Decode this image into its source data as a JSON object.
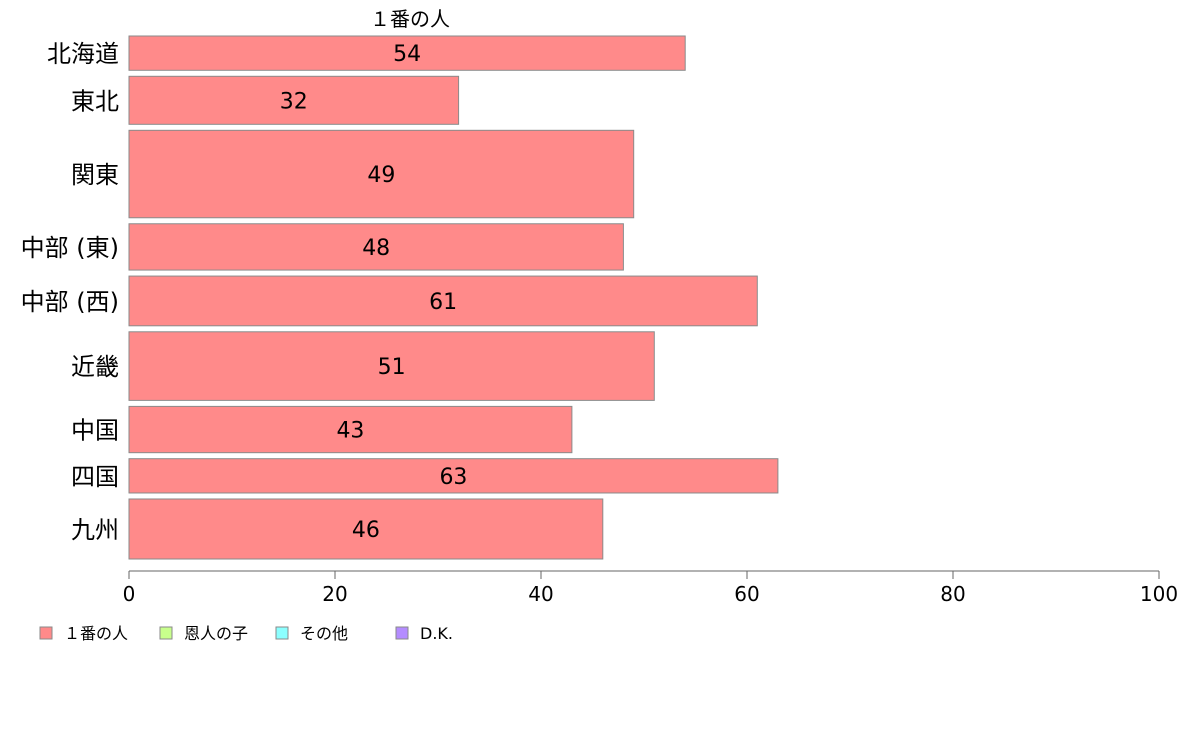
{
  "chart_data": {
    "type": "bar",
    "orientation": "horizontal",
    "stacked": true,
    "title": "",
    "series_header": "１番の人",
    "categories": [
      "北海道",
      "東北",
      "関東",
      "中部 (東)",
      "中部 (西)",
      "近畿",
      "中国",
      "四国",
      "九州"
    ],
    "bar_weights": [
      1.0,
      1.4,
      2.55,
      1.35,
      1.45,
      2.0,
      1.35,
      1.0,
      1.75
    ],
    "series": [
      {
        "name": "１番の人",
        "color": "#ff8a8a",
        "values": [
          54,
          32,
          49,
          48,
          61,
          51,
          43,
          63,
          46
        ],
        "labels": [
          "54",
          "32",
          "49",
          "48",
          "61",
          "51",
          "43",
          "63",
          "46"
        ]
      },
      {
        "name": "恩人の子",
        "color": "#c8ff8c",
        "values": [
          0,
          0,
          0,
          0,
          0,
          0,
          0,
          0,
          0
        ]
      },
      {
        "name": "その他",
        "color": "#8cffff",
        "values": [
          0,
          0,
          0,
          0,
          0,
          0,
          0,
          0,
          0
        ]
      },
      {
        "name": "D.K.",
        "color": "#b48cff",
        "values": [
          0,
          0,
          0,
          0,
          0,
          0,
          0,
          0,
          0
        ]
      }
    ],
    "xlim": [
      0,
      100
    ],
    "xticks": [
      0,
      20,
      40,
      60,
      80,
      100
    ],
    "xlabel": "",
    "ylabel": "",
    "grid": false,
    "legend_position": "bottom-left"
  }
}
